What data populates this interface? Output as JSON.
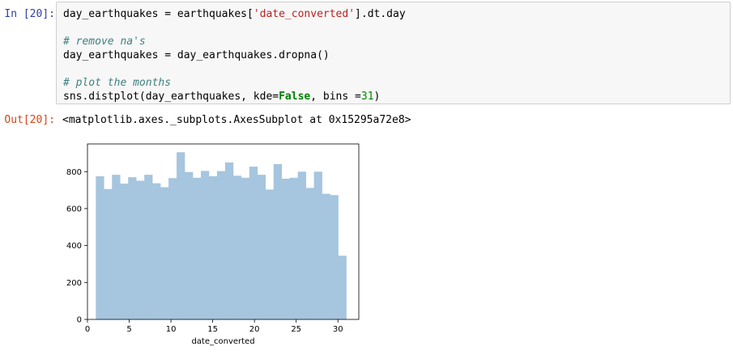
{
  "input_prompt": "In [20]:",
  "output_prompt": "Out[20]:",
  "code": {
    "line1_a": "day_earthquakes = earthquakes[",
    "line1_str": "'date_converted'",
    "line1_b": "].dt.day",
    "comment1": "# remove na's",
    "line2": "day_earthquakes = day_earthquakes.dropna()",
    "comment2": "# plot the months",
    "line3_a": "sns.distplot(day_earthquakes, kde=",
    "line3_kw": "False",
    "line3_b": ", bins =",
    "line3_num": "31",
    "line3_c": ")"
  },
  "output_text": "<matplotlib.axes._subplots.AxesSubplot at 0x15295a72e8>",
  "colors": {
    "bar": "#a6c5de",
    "prompt_in": "#303f9f",
    "prompt_out": "#d84315"
  },
  "chart_data": {
    "type": "bar",
    "title": "",
    "xlabel": "date_converted",
    "ylabel": "",
    "xlim": [
      0,
      32.5
    ],
    "ylim": [
      0,
      950
    ],
    "xticks": [
      0,
      5,
      10,
      15,
      20,
      25,
      30
    ],
    "yticks": [
      0,
      200,
      400,
      600,
      800
    ],
    "bin_start": 1,
    "bin_width": 0.9677,
    "values": [
      775,
      706,
      783,
      735,
      770,
      751,
      783,
      737,
      716,
      765,
      905,
      798,
      767,
      804,
      775,
      803,
      850,
      778,
      767,
      827,
      783,
      703,
      841,
      762,
      767,
      800,
      712,
      800,
      680,
      673,
      345
    ]
  }
}
